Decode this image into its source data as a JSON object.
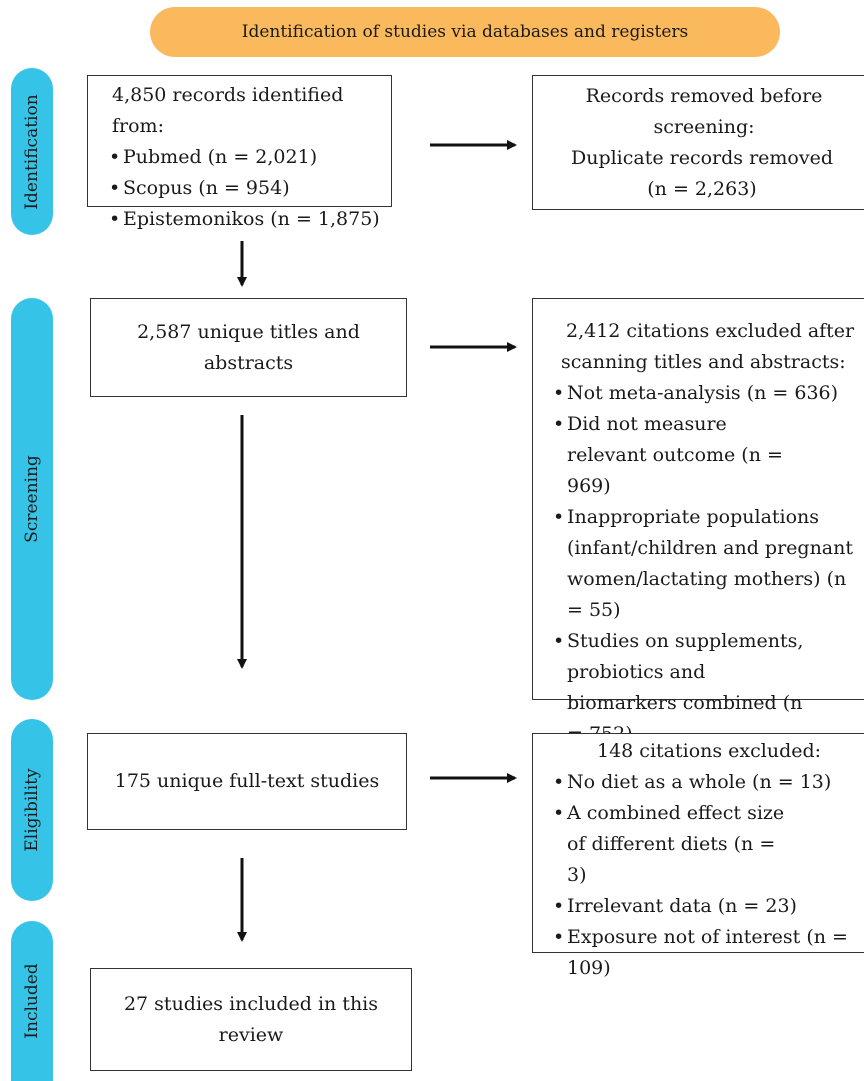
{
  "banner": "Identification of studies via databases and registers",
  "phases": {
    "identification": "Identification",
    "screening": "Screening",
    "eligibility": "Eligibility",
    "included": "Included"
  },
  "identified": {
    "title": "4,850 records identified from:",
    "items": [
      "Pubmed (n = 2,021)",
      "Scopus (n = 954)",
      "Epistemonikos (n = 1,875)"
    ]
  },
  "removed": {
    "line1": "Records removed before screening:",
    "line2": "Duplicate records removed",
    "line3": "(n = 2,263)"
  },
  "screened": "2,587 unique titles and abstracts",
  "excluded_screening": {
    "line1": "2,412 citations excluded after",
    "line2": "scanning titles and abstracts:",
    "items": [
      "Not meta-analysis (n = 636)",
      "Did not measure relevant outcome (n = 969)",
      "Inappropriate populations (infant/children and pregnant women/lactating mothers) (n = 55)",
      "Studies on supplements, probiotics and biomarkers combined (n = 752)"
    ]
  },
  "fulltext": "175 unique full-text studies",
  "excluded_fulltext": {
    "title": "148 citations excluded:",
    "items": [
      "No diet as a whole (n = 13)",
      "A combined effect size of different diets (n = 3)",
      "Irrelevant data (n = 23)",
      "Exposure not of interest (n = 109)"
    ]
  },
  "included": "27 studies included in this review"
}
